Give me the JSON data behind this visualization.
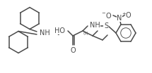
{
  "bg_color": "#ffffff",
  "line_color": "#4a4a4a",
  "line_width": 1.1,
  "figsize": [
    2.15,
    1.04
  ],
  "dpi": 100,
  "xlim": [
    0,
    215
  ],
  "ylim": [
    0,
    104
  ]
}
